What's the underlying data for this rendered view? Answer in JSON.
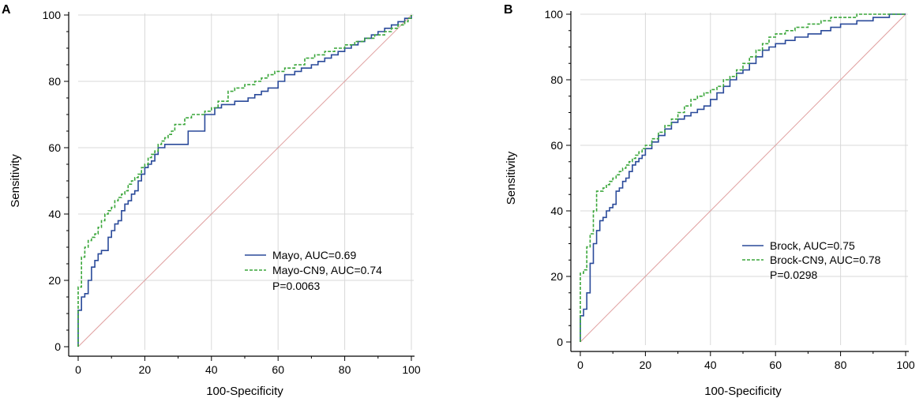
{
  "chart_data": [
    {
      "type": "line",
      "panel_label": "A",
      "xlabel": "100-Specificity",
      "ylabel": "Sensitivity",
      "xlim": [
        0,
        100
      ],
      "ylim": [
        0,
        100
      ],
      "x_ticks": [
        "0",
        "20",
        "40",
        "60",
        "80",
        "100"
      ],
      "y_ticks": [
        "0",
        "20",
        "40",
        "60",
        "80",
        "100"
      ],
      "grid": true,
      "legend_position": "bottom-right",
      "p_value": "P=0.0063",
      "reference_line": {
        "name": "chance",
        "x": [
          0,
          100
        ],
        "y": [
          0,
          100
        ],
        "color": "#e0a0a0"
      },
      "series": [
        {
          "name": "Mayo, AUC=0.69",
          "style": "solid",
          "color": "#2a4a9a",
          "x": [
            0,
            0,
            1,
            1,
            2,
            2,
            3,
            3,
            4,
            4,
            5,
            5,
            6,
            6,
            7,
            7,
            8,
            8,
            9,
            9,
            10,
            10,
            11,
            11,
            12,
            12,
            13,
            13,
            14,
            14,
            15,
            15,
            16,
            16,
            17,
            17,
            18,
            18,
            19,
            19,
            20,
            20,
            21,
            21,
            22,
            22,
            23,
            23,
            24,
            24,
            25,
            25,
            26,
            26,
            27,
            27,
            28,
            28,
            33,
            33,
            36,
            36,
            38,
            38,
            40,
            40,
            41,
            41,
            43,
            43,
            45,
            45,
            47,
            47,
            51,
            51,
            53,
            53,
            55,
            55,
            57,
            57,
            60,
            60,
            62,
            62,
            65,
            65,
            67,
            67,
            70,
            70,
            72,
            72,
            74,
            74,
            76,
            76,
            78,
            78,
            80,
            80,
            82,
            82,
            84,
            84,
            86,
            86,
            88,
            88,
            90,
            90,
            92,
            92,
            94,
            94,
            96,
            96,
            97,
            97,
            98,
            98,
            99,
            99,
            100,
            100
          ],
          "y": [
            0,
            11,
            11,
            15,
            15,
            16,
            16,
            20,
            20,
            24,
            24,
            26,
            26,
            28,
            28,
            29,
            29,
            29,
            29,
            33,
            33,
            35,
            35,
            37,
            37,
            38,
            38,
            41,
            41,
            43,
            43,
            44,
            44,
            46,
            46,
            47,
            47,
            50,
            50,
            52,
            52,
            54,
            54,
            55,
            55,
            56,
            56,
            58,
            58,
            60,
            60,
            60,
            60,
            61,
            61,
            61,
            61,
            61,
            61,
            65,
            65,
            65,
            65,
            70,
            70,
            70,
            70,
            72,
            72,
            73,
            73,
            73,
            73,
            74,
            74,
            75,
            75,
            76,
            76,
            77,
            77,
            78,
            78,
            80,
            80,
            82,
            82,
            83,
            83,
            84,
            84,
            85,
            85,
            86,
            86,
            87,
            87,
            88,
            88,
            89,
            89,
            90,
            90,
            91,
            91,
            92,
            92,
            93,
            93,
            94,
            94,
            95,
            95,
            96,
            96,
            97,
            97,
            98,
            98,
            98,
            98,
            99,
            99,
            99,
            99,
            100
          ]
        },
        {
          "name": "Mayo-CN9, AUC=0.74",
          "style": "dashed",
          "color": "#3aa63a",
          "x": [
            0,
            0,
            1,
            1,
            2,
            2,
            3,
            3,
            4,
            4,
            5,
            5,
            6,
            6,
            7,
            7,
            8,
            8,
            9,
            9,
            10,
            10,
            11,
            11,
            12,
            12,
            13,
            13,
            14,
            14,
            15,
            15,
            16,
            16,
            17,
            17,
            18,
            18,
            19,
            19,
            20,
            20,
            21,
            21,
            22,
            22,
            23,
            23,
            24,
            24,
            25,
            25,
            26,
            26,
            27,
            27,
            28,
            28,
            29,
            29,
            30,
            30,
            32,
            32,
            34,
            34,
            36,
            36,
            38,
            38,
            40,
            40,
            42,
            42,
            45,
            45,
            47,
            47,
            50,
            50,
            53,
            53,
            55,
            55,
            57,
            57,
            59,
            59,
            62,
            62,
            65,
            65,
            68,
            68,
            71,
            71,
            74,
            74,
            77,
            77,
            80,
            80,
            83,
            83,
            86,
            86,
            89,
            89,
            92,
            92,
            94,
            94,
            96,
            96,
            98,
            98,
            99,
            99,
            100,
            100
          ],
          "y": [
            0,
            18,
            18,
            27,
            27,
            30,
            30,
            32,
            32,
            33,
            33,
            34,
            34,
            36,
            36,
            38,
            38,
            40,
            40,
            41,
            41,
            42,
            42,
            44,
            44,
            45,
            45,
            46,
            46,
            47,
            47,
            49,
            49,
            50,
            50,
            51,
            51,
            52,
            52,
            54,
            54,
            55,
            55,
            57,
            57,
            58,
            58,
            59,
            59,
            61,
            61,
            62,
            62,
            63,
            63,
            64,
            64,
            65,
            65,
            67,
            67,
            67,
            67,
            69,
            69,
            70,
            70,
            70,
            70,
            71,
            71,
            72,
            72,
            74,
            74,
            77,
            77,
            78,
            78,
            79,
            79,
            80,
            80,
            81,
            81,
            82,
            82,
            83,
            83,
            84,
            84,
            85,
            85,
            87,
            87,
            88,
            88,
            89,
            89,
            90,
            90,
            91,
            91,
            92,
            92,
            93,
            93,
            94,
            94,
            95,
            95,
            96,
            96,
            97,
            97,
            98,
            98,
            99,
            99,
            100
          ]
        }
      ]
    },
    {
      "type": "line",
      "panel_label": "B",
      "xlabel": "100-Specificity",
      "ylabel": "Sensitivity",
      "xlim": [
        0,
        100
      ],
      "ylim": [
        0,
        100
      ],
      "x_ticks": [
        "0",
        "20",
        "40",
        "60",
        "80",
        "100"
      ],
      "y_ticks": [
        "0",
        "20",
        "40",
        "60",
        "80",
        "100"
      ],
      "grid": true,
      "legend_position": "bottom-right",
      "p_value": "P=0.0298",
      "reference_line": {
        "name": "chance",
        "x": [
          0,
          100
        ],
        "y": [
          0,
          100
        ],
        "color": "#e0a0a0"
      },
      "series": [
        {
          "name": "Brock, AUC=0.75",
          "style": "solid",
          "color": "#2a4a9a",
          "x": [
            0,
            0,
            1,
            1,
            2,
            2,
            3,
            3,
            4,
            4,
            5,
            5,
            6,
            6,
            7,
            7,
            8,
            8,
            9,
            9,
            10,
            10,
            11,
            11,
            12,
            12,
            13,
            13,
            14,
            14,
            15,
            15,
            16,
            16,
            17,
            17,
            18,
            18,
            19,
            19,
            20,
            20,
            22,
            22,
            24,
            24,
            26,
            26,
            28,
            28,
            30,
            30,
            32,
            32,
            34,
            34,
            36,
            36,
            38,
            38,
            40,
            40,
            42,
            42,
            44,
            44,
            46,
            46,
            48,
            48,
            50,
            50,
            52,
            52,
            54,
            54,
            56,
            56,
            58,
            58,
            60,
            60,
            63,
            63,
            66,
            66,
            70,
            70,
            74,
            74,
            77,
            77,
            80,
            80,
            85,
            85,
            90,
            90,
            95,
            95,
            100
          ],
          "y": [
            0,
            8,
            8,
            10,
            10,
            15,
            15,
            24,
            24,
            30,
            30,
            34,
            34,
            37,
            37,
            38,
            38,
            40,
            40,
            41,
            41,
            42,
            42,
            46,
            46,
            47,
            47,
            49,
            49,
            50,
            50,
            52,
            52,
            54,
            54,
            55,
            55,
            56,
            56,
            57,
            57,
            59,
            59,
            61,
            61,
            63,
            63,
            65,
            65,
            67,
            67,
            68,
            68,
            69,
            69,
            70,
            70,
            71,
            71,
            72,
            72,
            74,
            74,
            76,
            76,
            78,
            78,
            80,
            80,
            82,
            82,
            83,
            83,
            85,
            85,
            87,
            87,
            89,
            89,
            90,
            90,
            91,
            91,
            92,
            92,
            93,
            93,
            94,
            94,
            95,
            95,
            96,
            96,
            97,
            97,
            98,
            98,
            99,
            99,
            100,
            100
          ]
        },
        {
          "name": "Brock-CN9, AUC=0.78",
          "style": "dashed",
          "color": "#3aa63a",
          "x": [
            0,
            0,
            1,
            1,
            2,
            2,
            3,
            3,
            4,
            4,
            5,
            5,
            7,
            7,
            8,
            8,
            9,
            9,
            10,
            10,
            11,
            11,
            12,
            12,
            13,
            13,
            14,
            14,
            15,
            15,
            16,
            16,
            17,
            17,
            18,
            18,
            19,
            19,
            20,
            20,
            22,
            22,
            24,
            24,
            26,
            26,
            28,
            28,
            30,
            30,
            32,
            32,
            34,
            34,
            36,
            36,
            38,
            38,
            40,
            40,
            42,
            42,
            44,
            44,
            46,
            46,
            48,
            48,
            50,
            50,
            52,
            52,
            54,
            54,
            56,
            56,
            58,
            58,
            60,
            60,
            63,
            63,
            66,
            66,
            70,
            70,
            74,
            74,
            77,
            77,
            80,
            80,
            85,
            85,
            90,
            90,
            95,
            95,
            100
          ],
          "y": [
            0,
            21,
            21,
            22,
            22,
            29,
            29,
            33,
            33,
            40,
            40,
            46,
            46,
            47,
            47,
            48,
            48,
            49,
            49,
            50,
            50,
            51,
            51,
            52,
            52,
            53,
            53,
            54,
            54,
            55,
            55,
            56,
            56,
            57,
            57,
            58,
            58,
            59,
            59,
            60,
            60,
            62,
            62,
            64,
            64,
            66,
            66,
            68,
            68,
            70,
            70,
            72,
            72,
            74,
            74,
            75,
            75,
            76,
            76,
            77,
            77,
            78,
            78,
            80,
            80,
            81,
            81,
            83,
            83,
            85,
            85,
            87,
            87,
            89,
            89,
            91,
            91,
            93,
            93,
            94,
            94,
            95,
            95,
            96,
            96,
            97,
            97,
            98,
            98,
            99,
            99,
            99,
            99,
            100,
            100,
            100,
            100,
            100,
            100
          ]
        }
      ]
    }
  ]
}
